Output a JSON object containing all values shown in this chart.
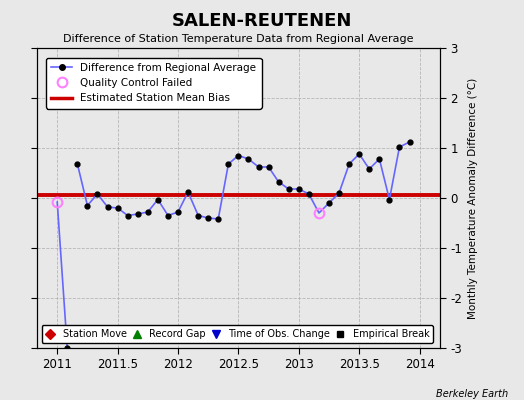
{
  "title": "SALEN-REUTENEN",
  "subtitle": "Difference of Station Temperature Data from Regional Average",
  "ylabel_right": "Monthly Temperature Anomaly Difference (°C)",
  "xlim": [
    2010.83,
    2014.17
  ],
  "ylim": [
    -3,
    3
  ],
  "yticks": [
    -3,
    -2,
    -1,
    0,
    1,
    2,
    3
  ],
  "xticks": [
    2011,
    2011.5,
    2012,
    2012.5,
    2013,
    2013.5,
    2014
  ],
  "xticklabels": [
    "2011",
    "2011.5",
    "2012",
    "2012.5",
    "2013",
    "2013.5",
    "2014"
  ],
  "bias_value": 0.06,
  "background_color": "#e8e8e8",
  "plot_bg_color": "#e8e8e8",
  "line_color": "#6666ff",
  "bias_color": "#cc0000",
  "qc_color": "#ff80ff",
  "data_x": [
    2011.0,
    2011.083,
    2011.167,
    2011.25,
    2011.333,
    2011.417,
    2011.5,
    2011.583,
    2011.667,
    2011.75,
    2011.833,
    2011.917,
    2012.0,
    2012.083,
    2012.167,
    2012.25,
    2012.333,
    2012.417,
    2012.5,
    2012.583,
    2012.667,
    2012.75,
    2012.833,
    2012.917,
    2013.0,
    2013.083,
    2013.167,
    2013.25,
    2013.333,
    2013.417,
    2013.5,
    2013.583,
    2013.667,
    2013.75,
    2013.833,
    2013.917
  ],
  "data_y": [
    -0.08,
    -3.0,
    0.68,
    -0.15,
    0.08,
    -0.18,
    -0.2,
    -0.35,
    -0.32,
    -0.28,
    -0.03,
    -0.35,
    -0.28,
    0.12,
    -0.35,
    -0.4,
    -0.42,
    0.68,
    0.85,
    0.78,
    0.62,
    0.62,
    0.32,
    0.18,
    0.18,
    0.08,
    -0.3,
    -0.1,
    0.1,
    0.68,
    0.88,
    0.58,
    0.78,
    -0.03,
    1.02,
    1.12
  ],
  "qc_indices": [
    0,
    26
  ],
  "segment_break": 1,
  "watermark": "Berkeley Earth"
}
